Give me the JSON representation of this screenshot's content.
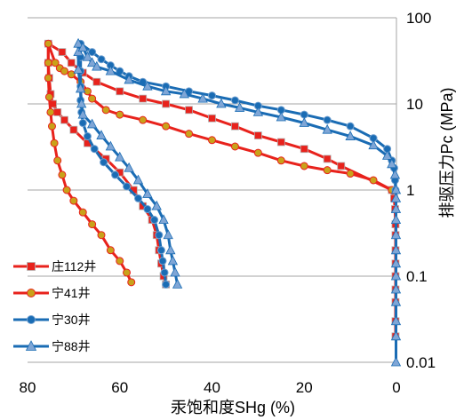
{
  "chart_data": {
    "type": "scatter",
    "title": "",
    "xlabel": "汞饱和度SHg (%)",
    "ylabel": "排驱压力Pc (MPa)",
    "x_reversed": true,
    "xlim": [
      80,
      0
    ],
    "y_scale": "log",
    "ylim": [
      0.01,
      100
    ],
    "x_ticks": [
      "80",
      "60",
      "40",
      "20",
      "0"
    ],
    "y_ticks": [
      "100",
      "10",
      "1",
      "0.1",
      "0.01"
    ],
    "grid": "horizontal",
    "legend_position": "bottom-left",
    "series": [
      {
        "name": "庄112井",
        "color": "#e8221c",
        "marker": "square",
        "points": [
          [
            50,
            0.08
          ],
          [
            50.5,
            0.1
          ],
          [
            51,
            0.14
          ],
          [
            51.5,
            0.2
          ],
          [
            52,
            0.3
          ],
          [
            53,
            0.45
          ],
          [
            55,
            0.65
          ],
          [
            57,
            1.0
          ],
          [
            60,
            1.6
          ],
          [
            63,
            2.3
          ],
          [
            67,
            3.5
          ],
          [
            70,
            5.0
          ],
          [
            72,
            6.5
          ],
          [
            73.5,
            8.0
          ],
          [
            74.5,
            10
          ],
          [
            75,
            13
          ],
          [
            75.3,
            20
          ],
          [
            75.5,
            30
          ],
          [
            75.5,
            50
          ],
          [
            72.5,
            40
          ],
          [
            70.5,
            30
          ],
          [
            68,
            23
          ],
          [
            65,
            18
          ],
          [
            60,
            14
          ],
          [
            55,
            11.5
          ],
          [
            50,
            10
          ],
          [
            45,
            8.5
          ],
          [
            40,
            6.8
          ],
          [
            35,
            5.5
          ],
          [
            30,
            4.3
          ],
          [
            25,
            3.6
          ],
          [
            20,
            3.0
          ],
          [
            15,
            2.3
          ],
          [
            12,
            1.9
          ],
          [
            1,
            1.0
          ],
          [
            0.5,
            0.8
          ],
          [
            0.3,
            0.6
          ],
          [
            0.2,
            0.4
          ],
          [
            0.2,
            0.3
          ],
          [
            0.2,
            0.2
          ],
          [
            0.2,
            0.14
          ],
          [
            0.2,
            0.1
          ],
          [
            0.2,
            0.07
          ],
          [
            0.2,
            0.05
          ],
          [
            0.2,
            0.03
          ],
          [
            0.2,
            0.02
          ]
        ]
      },
      {
        "name": "宁41井",
        "color": "#e8221c",
        "marker": "circle",
        "points": [
          [
            57.5,
            0.085
          ],
          [
            58.5,
            0.11
          ],
          [
            60,
            0.15
          ],
          [
            62,
            0.2
          ],
          [
            64,
            0.3
          ],
          [
            66,
            0.4
          ],
          [
            68,
            0.55
          ],
          [
            70,
            0.75
          ],
          [
            71.5,
            1.0
          ],
          [
            72.5,
            1.5
          ],
          [
            73.5,
            2.2
          ],
          [
            74.2,
            3.5
          ],
          [
            74.7,
            5.5
          ],
          [
            75,
            8
          ],
          [
            75.3,
            12
          ],
          [
            75.5,
            20
          ],
          [
            75.5,
            30
          ],
          [
            75.5,
            50
          ],
          [
            74,
            30
          ],
          [
            73,
            26
          ],
          [
            72,
            24
          ],
          [
            70.5,
            22
          ],
          [
            68.5,
            18
          ],
          [
            67,
            14
          ],
          [
            66,
            11.5
          ],
          [
            63,
            8.5
          ],
          [
            60,
            7.5
          ],
          [
            55,
            6.5
          ],
          [
            50,
            5.5
          ],
          [
            45,
            4.5
          ],
          [
            40,
            3.8
          ],
          [
            35,
            3.2
          ],
          [
            30,
            2.7
          ],
          [
            25,
            2.2
          ],
          [
            20,
            1.9
          ],
          [
            15,
            1.7
          ],
          [
            10,
            1.55
          ],
          [
            5,
            1.3
          ],
          [
            1,
            1.0
          ]
        ]
      },
      {
        "name": "宁30井",
        "color": "#1a6cb4",
        "marker": "circle",
        "points": [
          [
            50,
            0.08
          ],
          [
            50.3,
            0.11
          ],
          [
            50.7,
            0.15
          ],
          [
            51,
            0.2
          ],
          [
            51.5,
            0.3
          ],
          [
            52.5,
            0.45
          ],
          [
            54,
            0.6
          ],
          [
            56,
            0.8
          ],
          [
            58.5,
            1.1
          ],
          [
            61,
            1.5
          ],
          [
            63.5,
            2.1
          ],
          [
            65.5,
            3.0
          ],
          [
            67,
            4.2
          ],
          [
            68,
            6
          ],
          [
            68.3,
            8
          ],
          [
            68.5,
            11
          ],
          [
            68.5,
            16
          ],
          [
            68.5,
            24
          ],
          [
            68.5,
            35
          ],
          [
            68.5,
            50
          ],
          [
            66,
            40
          ],
          [
            64,
            33
          ],
          [
            62,
            28
          ],
          [
            60,
            24
          ],
          [
            58,
            21
          ],
          [
            55,
            18
          ],
          [
            50,
            16
          ],
          [
            45,
            14
          ],
          [
            40,
            12.5
          ],
          [
            35,
            11
          ],
          [
            30,
            9.5
          ],
          [
            25,
            8.5
          ],
          [
            20,
            7.5
          ],
          [
            15,
            6.5
          ],
          [
            10,
            5.5
          ],
          [
            5,
            4.0
          ],
          [
            2,
            3.0
          ],
          [
            1,
            2.2
          ],
          [
            0.5,
            1.8
          ],
          [
            0.3,
            1.3
          ],
          [
            0.2,
            1.0
          ]
        ]
      },
      {
        "name": "宁88井",
        "color": "#1a6cb4",
        "marker": "triangle",
        "points": [
          [
            47.5,
            0.08
          ],
          [
            48,
            0.11
          ],
          [
            48.5,
            0.15
          ],
          [
            49,
            0.2
          ],
          [
            49.5,
            0.3
          ],
          [
            50.5,
            0.45
          ],
          [
            52,
            0.65
          ],
          [
            54,
            0.9
          ],
          [
            56,
            1.3
          ],
          [
            58,
            1.8
          ],
          [
            60,
            2.4
          ],
          [
            62,
            3.2
          ],
          [
            64,
            4.3
          ],
          [
            66,
            5.8
          ],
          [
            68,
            7.5
          ],
          [
            68.3,
            10
          ],
          [
            68.5,
            15
          ],
          [
            69,
            25
          ],
          [
            69,
            40
          ],
          [
            69,
            50
          ],
          [
            68,
            45
          ],
          [
            67,
            35
          ],
          [
            66,
            30
          ],
          [
            65,
            27
          ],
          [
            62,
            24
          ],
          [
            58,
            19
          ],
          [
            54,
            16
          ],
          [
            50,
            14
          ],
          [
            46,
            13
          ],
          [
            42,
            11.5
          ],
          [
            38,
            10
          ],
          [
            34,
            9
          ],
          [
            30,
            8
          ],
          [
            25,
            7
          ],
          [
            20,
            6
          ],
          [
            15,
            5
          ],
          [
            10,
            4.2
          ],
          [
            5,
            3.3
          ],
          [
            2,
            2.5
          ],
          [
            1,
            2.0
          ],
          [
            0.3,
            1.5
          ],
          [
            0.1,
            1.0
          ],
          [
            0.1,
            0.8
          ],
          [
            0.1,
            0.6
          ],
          [
            0.1,
            0.45
          ],
          [
            0.1,
            0.3
          ],
          [
            0.1,
            0.2
          ],
          [
            0.1,
            0.14
          ],
          [
            0.1,
            0.1
          ],
          [
            0.1,
            0.07
          ],
          [
            0.1,
            0.05
          ],
          [
            0.1,
            0.03
          ],
          [
            0.1,
            0.02
          ],
          [
            0.1,
            0.01
          ]
        ]
      }
    ]
  }
}
